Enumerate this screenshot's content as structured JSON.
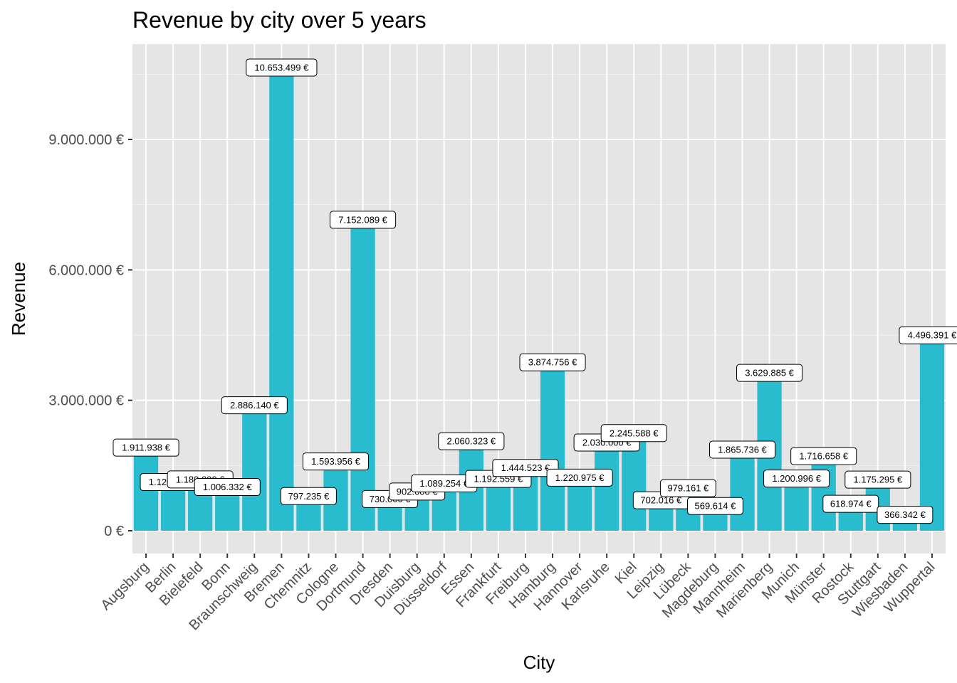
{
  "chart_data": {
    "type": "bar",
    "title": "Revenue by city over 5 years",
    "xlabel": "City",
    "ylabel": "Revenue",
    "ylim": [
      0,
      11200000
    ],
    "yticks": [
      0,
      3000000,
      6000000,
      9000000
    ],
    "ytick_labels": [
      "0 €",
      "3.000.000 €",
      "6.000.000 €",
      "9.000.000 €"
    ],
    "grid": true,
    "bar_color": "#29BCCE",
    "panel_color": "#E5E5E5",
    "categories": [
      "Augsburg",
      "Berlin",
      "Bielefeld",
      "Bonn",
      "Braunschweig",
      "Bremen",
      "Chemnitz",
      "Cologne",
      "Dortmund",
      "Dresden",
      "Duisburg",
      "Düsseldorf",
      "Essen",
      "Frankfurt",
      "Freiburg",
      "Hamburg",
      "Hannover",
      "Karlsruhe",
      "Kiel",
      "Leipzig",
      "Lübeck",
      "Magdeburg",
      "Mannheim",
      "Marienberg",
      "Munich",
      "Münster",
      "Rostock",
      "Stuttgart",
      "Wiesbaden",
      "Wuppertal"
    ],
    "values": [
      1911938,
      1120000,
      1180000,
      1006332,
      2886140,
      10653499,
      797235,
      1593956,
      7152089,
      730000,
      902000,
      1089254,
      2060323,
      1192559,
      1444523,
      3874756,
      1220975,
      2030000,
      2245588,
      702016,
      979161,
      569614,
      1865736,
      3629885,
      1200996,
      1716658,
      618974,
      1175295,
      366342,
      4496391
    ],
    "data_labels": [
      "1.911.938 €",
      "1.120.000 €",
      "1.180.000 €",
      "1.006.332 €",
      "2.886.140 €",
      "10.653.499 €",
      "797.235 €",
      "1.593.956 €",
      "7.152.089 €",
      "730.000 €",
      "902.000 €",
      "1.089.254 €",
      "2.060.323 €",
      "1.192.559 €",
      "1.444.523 €",
      "3.874.756 €",
      "1.220.975 €",
      "2.030.000 €",
      "2.245.588 €",
      "702.016 €",
      "979.161 €",
      "569.614 €",
      "1.865.736 €",
      "3.629.885 €",
      "1.200.996 €",
      "1.716.658 €",
      "618.974 €",
      "1.175.295 €",
      "366.342 €",
      "4.496.391 €"
    ]
  }
}
